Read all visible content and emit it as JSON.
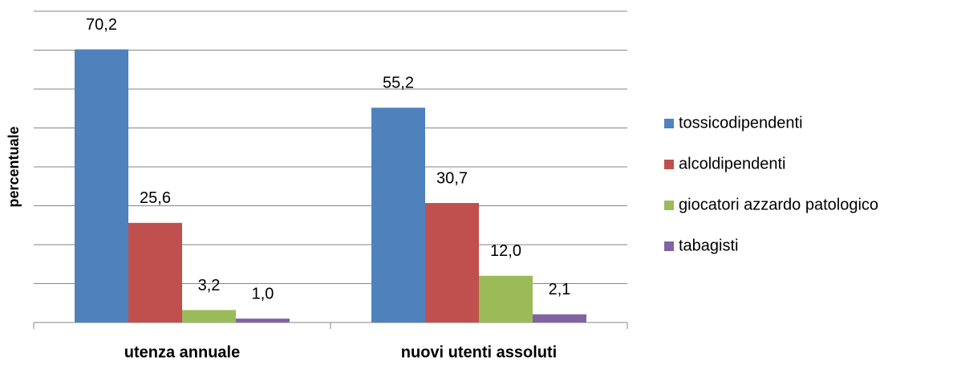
{
  "chart_data": {
    "type": "bar",
    "y_label": "percentuale",
    "categories": [
      "utenza annuale",
      "nuovi utenti assoluti"
    ],
    "series": [
      {
        "name": "tossicodipendenti",
        "color": "#4f81bd",
        "values": [
          70.2,
          55.2
        ],
        "value_labels": [
          "70,2",
          "55,2"
        ]
      },
      {
        "name": "alcoldipendenti",
        "color": "#c0504d",
        "values": [
          25.6,
          30.7
        ],
        "value_labels": [
          "25,6",
          "30,7"
        ]
      },
      {
        "name": "giocatori azzardo patologico",
        "color": "#9bbb59",
        "values": [
          3.2,
          12.0
        ],
        "value_labels": [
          "3,2",
          "12,0"
        ]
      },
      {
        "name": "tabagisti",
        "color": "#8064a2",
        "values": [
          1.0,
          2.1
        ],
        "value_labels": [
          "1,0",
          "2,1"
        ]
      }
    ],
    "ylim": [
      0,
      80
    ],
    "yticks": [
      0,
      10,
      20,
      30,
      40,
      50,
      60,
      70,
      80
    ],
    "grid": true,
    "legend": "right"
  }
}
